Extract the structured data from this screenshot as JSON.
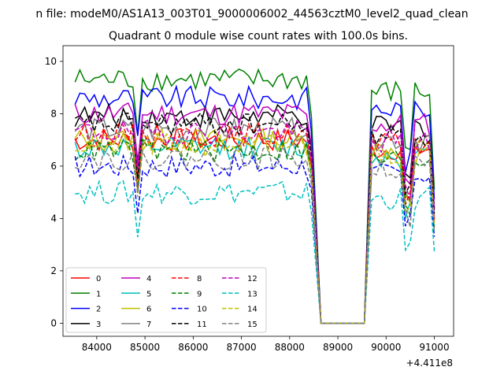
{
  "figure": {
    "suptitle": "n file: modeM0/AS1A13_003T01_9000006002_44563cztM0_level2_quad_clean",
    "title": "Quadrant 0 module wise count rates with 100.0s bins.",
    "x_offset_label": "+4.411e8"
  },
  "chart_data": {
    "type": "line",
    "title": "Quadrant 0 module wise count rates with 100.0s bins.",
    "xlabel": "",
    "ylabel": "",
    "x_offset": 441100000,
    "xlim": [
      83300,
      91400
    ],
    "ylim": [
      -0.5,
      10.6
    ],
    "xticks": [
      84000,
      85000,
      86000,
      87000,
      88000,
      89000,
      90000,
      91000
    ],
    "xtick_labels": [
      "84000",
      "85000",
      "86000",
      "87000",
      "88000",
      "89000",
      "90000",
      "91000"
    ],
    "yticks": [
      0,
      2,
      4,
      6,
      8,
      10
    ],
    "ytick_labels": [
      "0",
      "2",
      "4",
      "6",
      "8",
      "10"
    ],
    "grid": false,
    "legend_position": "lower-left",
    "legend_columns": 4,
    "segments": [
      {
        "start": 83550,
        "end": 88450,
        "step": 100
      },
      {
        "start": 89700,
        "end": 91050,
        "step": 100
      }
    ],
    "gap_x": [
      88650,
      89550
    ],
    "series": [
      {
        "name": "0",
        "color": "#ff0000",
        "dash": "solid",
        "level": 7.0
      },
      {
        "name": "1",
        "color": "#008000",
        "dash": "solid",
        "level": 9.3
      },
      {
        "name": "2",
        "color": "#0000ff",
        "dash": "solid",
        "level": 8.6
      },
      {
        "name": "3",
        "color": "#000000",
        "dash": "solid",
        "level": 7.9
      },
      {
        "name": "4",
        "color": "#bf00bf",
        "dash": "solid",
        "level": 8.0
      },
      {
        "name": "5",
        "color": "#00bfbf",
        "dash": "solid",
        "level": 6.7
      },
      {
        "name": "6",
        "color": "#bfbf00",
        "dash": "solid",
        "level": 7.0
      },
      {
        "name": "7",
        "color": "#808080",
        "dash": "solid",
        "level": 7.4
      },
      {
        "name": "8",
        "color": "#ff0000",
        "dash": "dashed",
        "level": 7.2
      },
      {
        "name": "9",
        "color": "#008000",
        "dash": "dashed",
        "level": 6.6
      },
      {
        "name": "10",
        "color": "#0000ff",
        "dash": "dashed",
        "level": 6.0
      },
      {
        "name": "11",
        "color": "#000000",
        "dash": "dashed",
        "level": 7.6
      },
      {
        "name": "12",
        "color": "#bf00bf",
        "dash": "dashed",
        "level": 7.3
      },
      {
        "name": "13",
        "color": "#00bfbf",
        "dash": "dashed",
        "level": 5.0
      },
      {
        "name": "14",
        "color": "#bfbf00",
        "dash": "dashed",
        "level": 6.8
      },
      {
        "name": "15",
        "color": "#808080",
        "dash": "dashed",
        "level": 6.3
      }
    ]
  }
}
